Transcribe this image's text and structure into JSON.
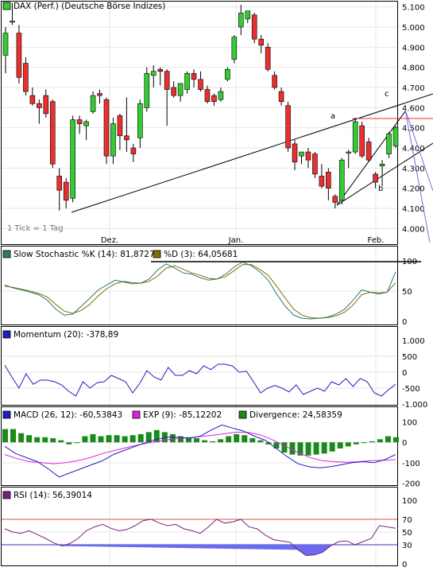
{
  "chart_data": [
    {
      "type": "candlestick",
      "legend": "DAX (Perf.) (Deutsche Börse Indizes)",
      "footnote": "1 Tick = 1 Tag",
      "x_labels": [
        "Dez.",
        "Jan.",
        "Feb."
      ],
      "y_ticks": [
        "4.000",
        "4.100",
        "4.200",
        "4.300",
        "4.400",
        "4.500",
        "4.600",
        "4.700",
        "4.800",
        "4.900",
        "5.000",
        "5.100"
      ],
      "ylim": [
        3950,
        5150
      ],
      "grid": true,
      "colors": {
        "up": "#33cc33",
        "down": "#e83030",
        "trendline": "#000000",
        "fan_line": "#7070dd"
      },
      "candles": [
        {
          "o": 4860,
          "h": 5000,
          "l": 4770,
          "c": 4970
        },
        {
          "o": 5030,
          "h": 5120,
          "l": 5010,
          "c": 5030
        },
        {
          "o": 4970,
          "h": 5010,
          "l": 4720,
          "c": 4750
        },
        {
          "o": 4820,
          "h": 4850,
          "l": 4660,
          "c": 4680
        },
        {
          "o": 4660,
          "h": 4700,
          "l": 4610,
          "c": 4620
        },
        {
          "o": 4620,
          "h": 4640,
          "l": 4520,
          "c": 4600
        },
        {
          "o": 4660,
          "h": 4690,
          "l": 4550,
          "c": 4570
        },
        {
          "o": 4630,
          "h": 4640,
          "l": 4300,
          "c": 4320
        },
        {
          "o": 4260,
          "h": 4300,
          "l": 4090,
          "c": 4190
        },
        {
          "o": 4230,
          "h": 4250,
          "l": 4100,
          "c": 4140
        },
        {
          "o": 4150,
          "h": 4560,
          "l": 4130,
          "c": 4540
        },
        {
          "o": 4540,
          "h": 4560,
          "l": 4470,
          "c": 4520
        },
        {
          "o": 4510,
          "h": 4540,
          "l": 4440,
          "c": 4530
        },
        {
          "o": 4580,
          "h": 4680,
          "l": 4570,
          "c": 4660
        },
        {
          "o": 4670,
          "h": 4690,
          "l": 4620,
          "c": 4660
        },
        {
          "o": 4640,
          "h": 4650,
          "l": 4320,
          "c": 4360
        },
        {
          "o": 4360,
          "h": 4550,
          "l": 4320,
          "c": 4520
        },
        {
          "o": 4560,
          "h": 4570,
          "l": 4390,
          "c": 4460
        },
        {
          "o": 4460,
          "h": 4650,
          "l": 4380,
          "c": 4440
        },
        {
          "o": 4400,
          "h": 4420,
          "l": 4330,
          "c": 4370
        },
        {
          "o": 4450,
          "h": 4640,
          "l": 4400,
          "c": 4620
        },
        {
          "o": 4600,
          "h": 4800,
          "l": 4580,
          "c": 4770
        },
        {
          "o": 4760,
          "h": 4810,
          "l": 4700,
          "c": 4780
        },
        {
          "o": 4790,
          "h": 4800,
          "l": 4710,
          "c": 4780
        },
        {
          "o": 4780,
          "h": 4790,
          "l": 4510,
          "c": 4690
        },
        {
          "o": 4700,
          "h": 4730,
          "l": 4650,
          "c": 4660
        },
        {
          "o": 4660,
          "h": 4720,
          "l": 4630,
          "c": 4720
        },
        {
          "o": 4690,
          "h": 4780,
          "l": 4670,
          "c": 4770
        },
        {
          "o": 4770,
          "h": 4790,
          "l": 4700,
          "c": 4740
        },
        {
          "o": 4740,
          "h": 4780,
          "l": 4680,
          "c": 4690
        },
        {
          "o": 4690,
          "h": 4710,
          "l": 4620,
          "c": 4630
        },
        {
          "o": 4660,
          "h": 4670,
          "l": 4610,
          "c": 4630
        },
        {
          "o": 4640,
          "h": 4700,
          "l": 4630,
          "c": 4680
        },
        {
          "o": 4740,
          "h": 4800,
          "l": 4730,
          "c": 4790
        },
        {
          "o": 4840,
          "h": 4960,
          "l": 4820,
          "c": 4950
        },
        {
          "o": 5000,
          "h": 5110,
          "l": 4960,
          "c": 5070
        },
        {
          "o": 5040,
          "h": 5080,
          "l": 5020,
          "c": 5080
        },
        {
          "o": 5060,
          "h": 5070,
          "l": 4920,
          "c": 4940
        },
        {
          "o": 4940,
          "h": 4960,
          "l": 4870,
          "c": 4910
        },
        {
          "o": 4900,
          "h": 4920,
          "l": 4780,
          "c": 4790
        },
        {
          "o": 4760,
          "h": 4780,
          "l": 4690,
          "c": 4700
        },
        {
          "o": 4680,
          "h": 4700,
          "l": 4610,
          "c": 4630
        },
        {
          "o": 4610,
          "h": 4630,
          "l": 4380,
          "c": 4400
        },
        {
          "o": 4420,
          "h": 4440,
          "l": 4290,
          "c": 4330
        },
        {
          "o": 4360,
          "h": 4380,
          "l": 4320,
          "c": 4380
        },
        {
          "o": 4380,
          "h": 4400,
          "l": 4300,
          "c": 4340
        },
        {
          "o": 4370,
          "h": 4380,
          "l": 4250,
          "c": 4270
        },
        {
          "o": 4260,
          "h": 4320,
          "l": 4200,
          "c": 4210
        },
        {
          "o": 4280,
          "h": 4300,
          "l": 4140,
          "c": 4200
        },
        {
          "o": 4160,
          "h": 4170,
          "l": 4100,
          "c": 4130
        },
        {
          "o": 4140,
          "h": 4350,
          "l": 4120,
          "c": 4340
        },
        {
          "o": 4380,
          "h": 4390,
          "l": 4300,
          "c": 4380
        },
        {
          "o": 4380,
          "h": 4550,
          "l": 4370,
          "c": 4530
        },
        {
          "o": 4510,
          "h": 4530,
          "l": 4350,
          "c": 4360
        },
        {
          "o": 4430,
          "h": 4450,
          "l": 4330,
          "c": 4340
        },
        {
          "o": 4270,
          "h": 4280,
          "l": 4200,
          "c": 4230
        },
        {
          "o": 4310,
          "h": 4340,
          "l": 4210,
          "c": 4320
        },
        {
          "o": 4370,
          "h": 4480,
          "l": 4350,
          "c": 4470
        },
        {
          "o": 4410,
          "h": 4510,
          "l": 4400,
          "c": 4500
        }
      ],
      "annotations": [
        "a",
        "b",
        "c"
      ]
    },
    {
      "type": "line",
      "legend": [
        {
          "name": "Slow Stochastic %K (14): 81,87272",
          "color": "#2d7a6c"
        },
        {
          "name": "%D (3): 64,05681",
          "color": "#807000"
        }
      ],
      "y_ticks": [
        "0",
        "50",
        "100"
      ],
      "ylim": [
        0,
        100
      ],
      "series": [
        {
          "name": "%K",
          "values": [
            60,
            55,
            52,
            48,
            44,
            35,
            20,
            10,
            12,
            25,
            38,
            52,
            60,
            68,
            65,
            62,
            63,
            70,
            85,
            95,
            88,
            80,
            78,
            72,
            68,
            70,
            78,
            90,
            98,
            92,
            82,
            68,
            45,
            25,
            10,
            5,
            4,
            5,
            7,
            12,
            20,
            35,
            52,
            48,
            45,
            48,
            82
          ]
        },
        {
          "name": "%D",
          "values": [
            58,
            56,
            53,
            50,
            46,
            40,
            28,
            17,
            13,
            18,
            28,
            42,
            54,
            62,
            66,
            64,
            63,
            66,
            75,
            88,
            92,
            86,
            80,
            76,
            71,
            70,
            74,
            84,
            94,
            94,
            86,
            76,
            58,
            38,
            20,
            10,
            6,
            5,
            6,
            9,
            15,
            27,
            44,
            48,
            47,
            48,
            64
          ]
        }
      ]
    },
    {
      "type": "line",
      "legend": [
        {
          "name": "Momentum (20): -378,89",
          "color": "#1f1fc0"
        }
      ],
      "y_ticks": [
        "-1.000",
        "-500",
        "0",
        "500",
        "1.000"
      ],
      "ylim": [
        -1000,
        1000
      ],
      "series": [
        {
          "name": "Momentum",
          "values": [
            220,
            -150,
            -500,
            -50,
            -380,
            -250,
            -250,
            -300,
            -400,
            -600,
            -750,
            -300,
            -500,
            -330,
            -300,
            -100,
            -200,
            -300,
            -650,
            -350,
            50,
            -150,
            -250,
            150,
            -100,
            -100,
            50,
            -50,
            200,
            80,
            250,
            250,
            200,
            0,
            30,
            -300,
            -650,
            -500,
            -420,
            -500,
            -620,
            -400,
            -700,
            -600,
            -500,
            -600,
            -300,
            -400,
            -200,
            -450,
            -200,
            -300,
            -650,
            -750,
            -550,
            -380
          ]
        }
      ]
    },
    {
      "type": "bar+line",
      "legend": [
        {
          "name": "MACD (26, 12): -60,53843",
          "color": "#1f1fc0"
        },
        {
          "name": "EXP (9): -85,12202",
          "color": "#e020e0"
        },
        {
          "name": "Divergence: 24,58359",
          "color": "#1a8a1a"
        }
      ],
      "y_ticks": [
        "-200",
        "-100",
        "0",
        "100"
      ],
      "ylim": [
        -210,
        110
      ],
      "divergence": [
        65,
        65,
        45,
        35,
        25,
        25,
        20,
        10,
        -10,
        0,
        30,
        40,
        30,
        35,
        35,
        30,
        35,
        40,
        50,
        60,
        50,
        40,
        30,
        25,
        20,
        10,
        5,
        15,
        30,
        40,
        35,
        20,
        10,
        -10,
        -30,
        -50,
        -60,
        -65,
        -65,
        -60,
        -55,
        -45,
        -30,
        -20,
        -10,
        0,
        5,
        15,
        30,
        25
      ],
      "series": [
        {
          "name": "MACD",
          "values": [
            -20,
            -55,
            -75,
            -95,
            -130,
            -170,
            -150,
            -130,
            -110,
            -90,
            -60,
            -40,
            -20,
            0,
            15,
            25,
            25,
            20,
            30,
            60,
            85,
            70,
            55,
            30,
            10,
            -30,
            -70,
            -105,
            -120,
            -125,
            -120,
            -110,
            -100,
            -95,
            -100,
            -85,
            -60
          ]
        },
        {
          "name": "EXP",
          "values": [
            -60,
            -80,
            -95,
            -100,
            -105,
            -100,
            -90,
            -75,
            -55,
            -40,
            -25,
            -12,
            0,
            10,
            18,
            22,
            28,
            35,
            42,
            50,
            48,
            35,
            10,
            -20,
            -50,
            -75,
            -90,
            -95,
            -98,
            -95,
            -90,
            -88,
            -85
          ]
        }
      ]
    },
    {
      "type": "line",
      "legend": [
        {
          "name": "RSI (14): 56,39014",
          "color": "#7a2080"
        }
      ],
      "y_ticks": [
        "0",
        "30",
        "50",
        "70",
        "100"
      ],
      "ylim": [
        0,
        100
      ],
      "reference_lines": [
        70,
        30
      ],
      "series": [
        {
          "name": "RSI",
          "values": [
            55,
            50,
            48,
            52,
            46,
            40,
            33,
            28,
            32,
            40,
            52,
            58,
            62,
            56,
            52,
            54,
            60,
            68,
            70,
            64,
            60,
            62,
            55,
            52,
            48,
            58,
            70,
            64,
            66,
            70,
            58,
            55,
            45,
            38,
            36,
            34,
            22,
            13,
            14,
            18,
            28,
            35,
            36,
            30,
            35,
            40,
            60,
            58,
            56
          ]
        }
      ]
    }
  ]
}
